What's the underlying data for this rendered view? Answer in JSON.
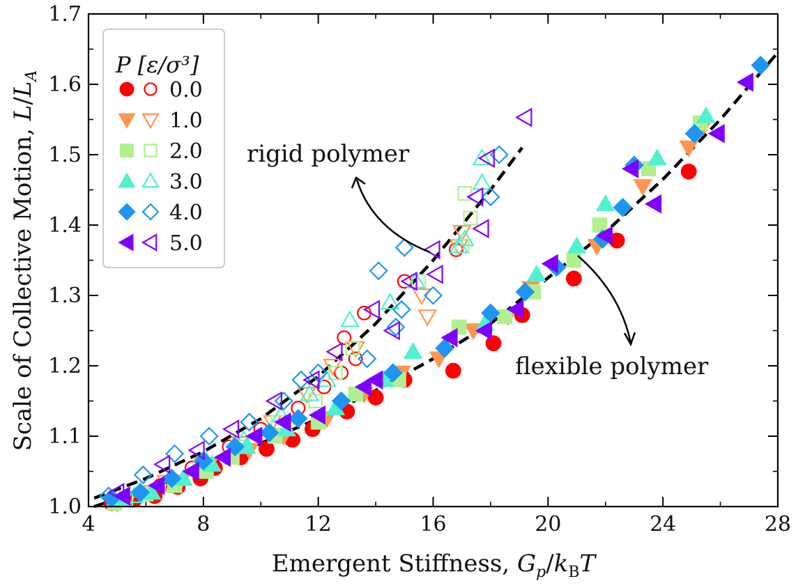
{
  "chart_data": {
    "type": "scatter",
    "title": "",
    "xlabel": "Emergent Stiffness, G_p/k_B T",
    "xlabel_plain": "Emergent Stiffness, ",
    "xlabel_math": "Gp/kBT",
    "ylabel": "Scale of Collective Motion, L/L_A",
    "ylabel_plain": "Scale of Collective Motion, ",
    "ylabel_math": "L/LA",
    "xlim": [
      4,
      28
    ],
    "ylim": [
      1.0,
      1.7
    ],
    "xticks": [
      4,
      8,
      12,
      16,
      20,
      24,
      28
    ],
    "xtick_labels": [
      "4",
      "8",
      "12",
      "16",
      "20",
      "24",
      "28"
    ],
    "yticks": [
      1.0,
      1.1,
      1.2,
      1.3,
      1.4,
      1.5,
      1.6,
      1.7
    ],
    "ytick_labels": [
      "1.0",
      "1.1",
      "1.2",
      "1.3",
      "1.4",
      "1.5",
      "1.6",
      "1.7"
    ],
    "grid": false,
    "legend": {
      "placement": "top-left",
      "title": "P [ε/σ³]",
      "entries": [
        {
          "label": "0.0",
          "marker": "circle",
          "color": "#ff0000"
        },
        {
          "label": "1.0",
          "marker": "triangle-down",
          "color": "#ff9650"
        },
        {
          "label": "2.0",
          "marker": "square",
          "color": "#b0f090"
        },
        {
          "label": "3.0",
          "marker": "triangle-up",
          "color": "#50f0d0"
        },
        {
          "label": "4.0",
          "marker": "diamond",
          "color": "#1e96f0"
        },
        {
          "label": "5.0",
          "marker": "triangle-left",
          "color": "#8000ff"
        }
      ]
    },
    "annotations": [
      {
        "text": "rigid polymer",
        "x": 12.5,
        "y": 1.5,
        "arrow_to": "rigid fit curve"
      },
      {
        "text": "flexible polymer",
        "x": 22.2,
        "y": 1.2,
        "arrow_to": "flexible fit curve"
      }
    ],
    "fits": [
      {
        "name": "rigid fit",
        "style": "dashed",
        "color": "#000000",
        "x": [
          4.2,
          6,
          8,
          10,
          12,
          14,
          16,
          18,
          19.1
        ],
        "y": [
          1.012,
          1.04,
          1.078,
          1.125,
          1.185,
          1.26,
          1.35,
          1.45,
          1.51
        ]
      },
      {
        "name": "flexible fit",
        "style": "dashed",
        "color": "#000000",
        "x": [
          4.2,
          6,
          8,
          10,
          12,
          14,
          16,
          18,
          20,
          22,
          24,
          26,
          28
        ],
        "y": [
          1.0,
          1.025,
          1.055,
          1.09,
          1.125,
          1.165,
          1.21,
          1.26,
          1.325,
          1.39,
          1.465,
          1.55,
          1.645
        ]
      }
    ],
    "series": [
      {
        "name": "P=0.0 flexible",
        "filled": true,
        "marker": "circle",
        "color": "#ff0000",
        "x": [
          4.8,
          5.6,
          6.3,
          7.1,
          7.9,
          8.4,
          9.3,
          10.2,
          11.1,
          11.8,
          13.0,
          14.0,
          15.0,
          16.7,
          18.1,
          19.1,
          20.9,
          22.4,
          24.9
        ],
        "y": [
          1.005,
          1.01,
          1.015,
          1.028,
          1.04,
          1.055,
          1.07,
          1.082,
          1.095,
          1.11,
          1.135,
          1.155,
          1.18,
          1.193,
          1.232,
          1.272,
          1.324,
          1.378,
          1.476
        ]
      },
      {
        "name": "P=0.0 rigid",
        "filled": false,
        "marker": "circle",
        "color": "#ff0000",
        "x": [
          5.2,
          6.5,
          7.6,
          8.9,
          10.0,
          11.3,
          12.2,
          12.8,
          12.9,
          13.3,
          13.6,
          15.0,
          16.8
        ],
        "y": [
          1.01,
          1.03,
          1.055,
          1.085,
          1.11,
          1.14,
          1.17,
          1.19,
          1.24,
          1.21,
          1.275,
          1.32,
          1.365
        ]
      },
      {
        "name": "P=1.0 flexible",
        "filled": true,
        "marker": "triangle-down",
        "color": "#ff9650",
        "x": [
          5.0,
          6.1,
          7.2,
          8.2,
          9.6,
          10.8,
          12.3,
          13.6,
          14.9,
          16.2,
          17.4,
          18.6,
          19.4,
          21.7,
          23.3,
          24.9,
          25.4
        ],
        "y": [
          1.005,
          1.02,
          1.035,
          1.06,
          1.08,
          1.1,
          1.125,
          1.16,
          1.19,
          1.21,
          1.25,
          1.27,
          1.31,
          1.37,
          1.455,
          1.51,
          1.54
        ]
      },
      {
        "name": "P=1.0 rigid",
        "filled": false,
        "marker": "triangle-down",
        "color": "#ff9650",
        "x": [
          5.4,
          6.7,
          8.0,
          9.3,
          10.4,
          11.6,
          12.5,
          13.3,
          15.6,
          15.8,
          16.9,
          17.0
        ],
        "y": [
          1.012,
          1.035,
          1.06,
          1.09,
          1.12,
          1.16,
          1.2,
          1.225,
          1.3,
          1.27,
          1.37,
          1.39
        ]
      },
      {
        "name": "P=2.0 flexible",
        "filled": true,
        "marker": "square",
        "color": "#b0f090",
        "x": [
          4.9,
          6.0,
          7.0,
          8.1,
          9.0,
          10.5,
          12.0,
          13.3,
          14.8,
          16.9,
          18.5,
          19.5,
          20.9,
          21.8,
          23.5,
          25.3
        ],
        "y": [
          1.005,
          1.018,
          1.03,
          1.05,
          1.07,
          1.1,
          1.12,
          1.16,
          1.18,
          1.255,
          1.27,
          1.305,
          1.35,
          1.4,
          1.48,
          1.545
        ]
      },
      {
        "name": "P=2.0 rigid",
        "filled": false,
        "marker": "square",
        "color": "#b0f090",
        "x": [
          5.3,
          6.8,
          7.9,
          9.2,
          10.6,
          11.9,
          12.6,
          13.2,
          15.5,
          17.0,
          17.3,
          17.1
        ],
        "y": [
          1.01,
          1.03,
          1.058,
          1.085,
          1.12,
          1.15,
          1.19,
          1.225,
          1.32,
          1.37,
          1.41,
          1.445
        ]
      },
      {
        "name": "P=3.0 flexible",
        "filled": true,
        "marker": "triangle-up",
        "color": "#50f0d0",
        "x": [
          5.1,
          6.2,
          7.3,
          8.3,
          9.5,
          10.9,
          12.6,
          14.3,
          15.3,
          17.8,
          19.6,
          21.0,
          22.0,
          23.8,
          25.5
        ],
        "y": [
          1.01,
          1.02,
          1.04,
          1.06,
          1.085,
          1.11,
          1.14,
          1.18,
          1.22,
          1.26,
          1.33,
          1.37,
          1.43,
          1.495,
          1.555
        ]
      },
      {
        "name": "P=3.0 rigid",
        "filled": false,
        "marker": "triangle-up",
        "color": "#50f0d0",
        "x": [
          5.6,
          6.9,
          8.1,
          9.4,
          10.7,
          11.7,
          12.3,
          13.1,
          14.5,
          15.4,
          16.9,
          17.1,
          17.7,
          17.7
        ],
        "y": [
          1.015,
          1.04,
          1.065,
          1.095,
          1.13,
          1.16,
          1.18,
          1.265,
          1.29,
          1.32,
          1.37,
          1.38,
          1.46,
          1.495
        ]
      },
      {
        "name": "P=4.0 flexible",
        "filled": true,
        "marker": "diamond",
        "color": "#1e96f0",
        "x": [
          4.8,
          5.8,
          6.9,
          8.0,
          9.1,
          10.3,
          11.3,
          12.8,
          14.6,
          16.4,
          18.0,
          19.2,
          20.3,
          21.9,
          22.6,
          23.0,
          25.1,
          27.4
        ],
        "y": [
          1.012,
          1.02,
          1.04,
          1.065,
          1.085,
          1.105,
          1.125,
          1.15,
          1.19,
          1.225,
          1.275,
          1.305,
          1.34,
          1.38,
          1.425,
          1.485,
          1.53,
          1.627
        ]
      },
      {
        "name": "P=4.0 rigid",
        "filled": false,
        "marker": "diamond",
        "color": "#1e96f0",
        "x": [
          4.7,
          5.9,
          7.0,
          8.2,
          9.6,
          10.8,
          11.4,
          12.0,
          13.7,
          14.1,
          14.7,
          14.9,
          15.0,
          16.0,
          18.0,
          18.3
        ],
        "y": [
          1.015,
          1.045,
          1.075,
          1.1,
          1.12,
          1.15,
          1.18,
          1.19,
          1.21,
          1.335,
          1.255,
          1.28,
          1.368,
          1.3,
          1.44,
          1.5
        ]
      },
      {
        "name": "P=5.0 flexible",
        "filled": true,
        "marker": "triangle-left",
        "color": "#8000ff",
        "x": [
          5.2,
          6.4,
          7.6,
          8.7,
          9.8,
          10.8,
          12.0,
          13.6,
          14.0,
          16.6,
          17.8,
          18.9,
          20.1,
          22.0,
          22.9,
          23.7,
          25.9,
          26.9
        ],
        "y": [
          1.015,
          1.03,
          1.05,
          1.07,
          1.1,
          1.12,
          1.13,
          1.17,
          1.18,
          1.24,
          1.25,
          1.28,
          1.345,
          1.385,
          1.48,
          1.43,
          1.53,
          1.603
        ]
      },
      {
        "name": "P=5.0 rigid",
        "filled": false,
        "marker": "triangle-left",
        "color": "#8000ff",
        "x": [
          5.0,
          6.6,
          7.8,
          9.0,
          10.5,
          11.8,
          12.6,
          13.9,
          14.6,
          15.2,
          16.1,
          16.0,
          17.7,
          17.5,
          17.9,
          19.2
        ],
        "y": [
          1.02,
          1.06,
          1.08,
          1.11,
          1.15,
          1.18,
          1.22,
          1.28,
          1.25,
          1.32,
          1.33,
          1.365,
          1.395,
          1.44,
          1.495,
          1.553
        ]
      }
    ]
  }
}
